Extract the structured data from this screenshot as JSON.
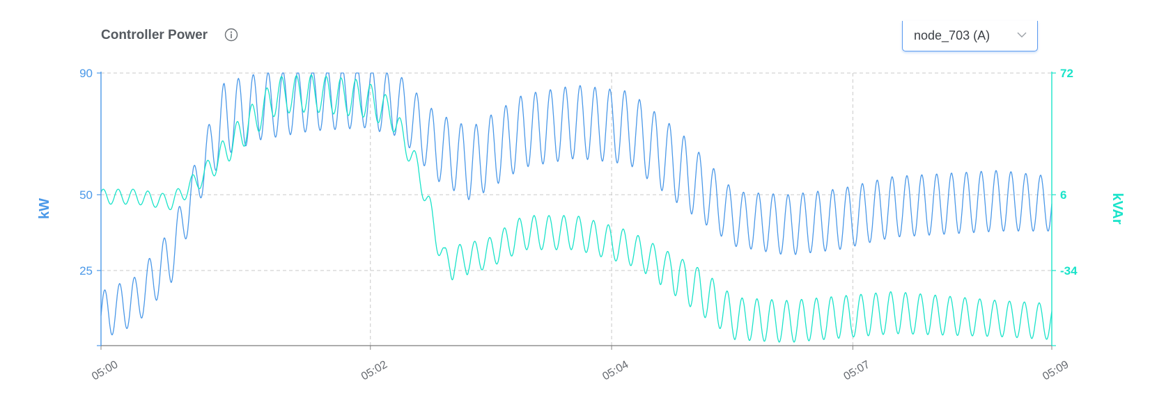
{
  "header": {
    "title": "Controller Power",
    "info_icon": "info-circle-icon",
    "dropdown": {
      "selected": "node_703 (A)",
      "icon": "chevron-down-icon"
    }
  },
  "colors": {
    "kw": "#4a98e8",
    "kvar": "#19e3c9",
    "grid": "#c8c8c8",
    "title": "#555a60"
  },
  "chart_data": {
    "type": "line",
    "title": "Controller Power",
    "x_ticks": [
      "05:00",
      "05:02",
      "05:04",
      "05:07",
      "05:09"
    ],
    "y_left": {
      "label": "kW",
      "ticks": [
        25,
        50,
        90
      ],
      "range": [
        0,
        90
      ]
    },
    "y_right": {
      "label": "kVAr",
      "ticks": [
        -34,
        6,
        72
      ],
      "range": [
        -59,
        72
      ]
    },
    "grid": true,
    "legend": "none",
    "series": [
      {
        "axis": "left",
        "oscillation_cycles": 64,
        "baseline": [
          {
            "t": "05:00:00",
            "mid": 10,
            "amp": 8
          },
          {
            "t": "05:00:20",
            "mid": 15,
            "amp": 8
          },
          {
            "t": "05:00:40",
            "mid": 30,
            "amp": 9
          },
          {
            "t": "05:00:55",
            "mid": 55,
            "amp": 8
          },
          {
            "t": "05:01:10",
            "mid": 75,
            "amp": 12
          },
          {
            "t": "05:01:30",
            "mid": 79,
            "amp": 11
          },
          {
            "t": "05:02:00",
            "mid": 81,
            "amp": 10
          },
          {
            "t": "05:02:30",
            "mid": 82,
            "amp": 10
          },
          {
            "t": "05:02:50",
            "mid": 79,
            "amp": 10
          },
          {
            "t": "05:03:10",
            "mid": 66,
            "amp": 11
          },
          {
            "t": "05:03:30",
            "mid": 60,
            "amp": 12
          },
          {
            "t": "05:04:00",
            "mid": 71,
            "amp": 12
          },
          {
            "t": "05:04:30",
            "mid": 74,
            "amp": 12
          },
          {
            "t": "05:05:00",
            "mid": 72,
            "amp": 12
          },
          {
            "t": "05:05:30",
            "mid": 58,
            "amp": 12
          },
          {
            "t": "05:06:00",
            "mid": 42,
            "amp": 9
          },
          {
            "t": "05:06:30",
            "mid": 40,
            "amp": 10
          },
          {
            "t": "05:07:00",
            "mid": 42,
            "amp": 10
          },
          {
            "t": "05:07:30",
            "mid": 46,
            "amp": 10
          },
          {
            "t": "05:08:30",
            "mid": 48,
            "amp": 10
          },
          {
            "t": "05:09:00",
            "mid": 47,
            "amp": 9
          }
        ]
      },
      {
        "axis": "right",
        "oscillation_cycles": 64,
        "baseline": [
          {
            "t": "05:00:00",
            "mid": 5,
            "amp": 4
          },
          {
            "t": "05:00:20",
            "mid": 5,
            "amp": 4
          },
          {
            "t": "05:00:40",
            "mid": 2,
            "amp": 4
          },
          {
            "t": "05:01:00",
            "mid": 18,
            "amp": 6
          },
          {
            "t": "05:01:20",
            "mid": 40,
            "amp": 9
          },
          {
            "t": "05:01:40",
            "mid": 60,
            "amp": 10
          },
          {
            "t": "05:02:00",
            "mid": 61,
            "amp": 10
          },
          {
            "t": "05:02:30",
            "mid": 58,
            "amp": 10
          },
          {
            "t": "05:02:45",
            "mid": 50,
            "amp": 8
          },
          {
            "t": "05:03:00",
            "mid": 20,
            "amp": 6
          },
          {
            "t": "05:03:15",
            "mid": -30,
            "amp": 8
          },
          {
            "t": "05:03:40",
            "mid": -25,
            "amp": 8
          },
          {
            "t": "05:04:00",
            "mid": -14,
            "amp": 9
          },
          {
            "t": "05:04:30",
            "mid": -14,
            "amp": 9
          },
          {
            "t": "05:05:00",
            "mid": -22,
            "amp": 9
          },
          {
            "t": "05:05:30",
            "mid": -36,
            "amp": 8
          },
          {
            "t": "05:06:00",
            "mid": -50,
            "amp": 7
          },
          {
            "t": "05:06:30",
            "mid": -51,
            "amp": 7
          },
          {
            "t": "05:07:30",
            "mid": -48,
            "amp": 7
          },
          {
            "t": "05:08:30",
            "mid": -50,
            "amp": 6
          },
          {
            "t": "05:09:00",
            "mid": -51,
            "amp": 6
          }
        ]
      }
    ]
  }
}
